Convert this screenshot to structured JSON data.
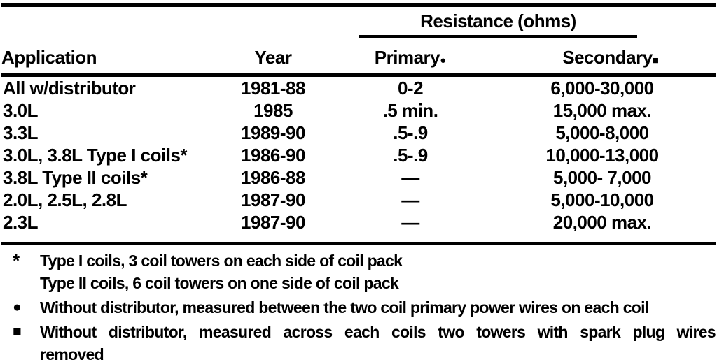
{
  "page": {
    "background": "#ffffff",
    "text_color": "#000000"
  },
  "table": {
    "group_header": {
      "label": "Resistance (ohms)"
    },
    "columns": {
      "application": "Application",
      "year": "Year",
      "primary": "Primary",
      "primary_marker": "●",
      "secondary": "Secondary",
      "secondary_marker": "■"
    },
    "rows": [
      {
        "application": "All w/distributor",
        "year": "1981-88",
        "primary": "0-2",
        "secondary": "6,000-30,000"
      },
      {
        "application": "3.0L",
        "year": "1985",
        "primary": ".5 min.",
        "secondary": "15,000 max."
      },
      {
        "application": "3.3L",
        "year": "1989-90",
        "primary": ".5-.9",
        "secondary": "5,000-8,000"
      },
      {
        "application": "3.0L, 3.8L Type I coils*",
        "year": "1986-90",
        "primary": ".5-.9",
        "secondary": "10,000-13,000"
      },
      {
        "application": "3.8L Type II coils*",
        "year": "1986-88",
        "primary": "—",
        "secondary": "5,000- 7,000"
      },
      {
        "application": "2.0L, 2.5L, 2.8L",
        "year": "1987-90",
        "primary": "—",
        "secondary": "5,000-10,000"
      },
      {
        "application": "2.3L",
        "year": "1987-90",
        "primary": "—",
        "secondary": "20,000 max."
      }
    ]
  },
  "footnotes": [
    {
      "marker": "*",
      "lines": [
        "Type I coils, 3 coil towers on each side of coil pack",
        "Type II coils, 6 coil towers on one side of coil pack"
      ]
    },
    {
      "marker": "●",
      "lines": [
        "Without distributor, measured between the two coil primary power wires on each coil"
      ]
    },
    {
      "marker": "■",
      "lines": [
        "Without distributor, measured across each coils two towers with spark plug wires",
        "removed"
      ]
    }
  ]
}
